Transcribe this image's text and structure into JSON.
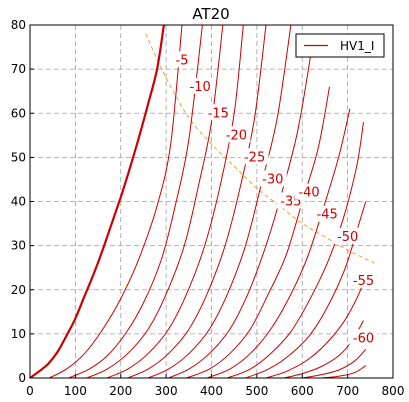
{
  "chart_data": {
    "type": "line",
    "title": "AT20",
    "xlabel": "",
    "ylabel": "",
    "xlim": [
      0,
      800
    ],
    "ylim": [
      0,
      80
    ],
    "x_ticks": [
      0,
      100,
      200,
      300,
      400,
      500,
      600,
      700,
      800
    ],
    "y_ticks": [
      0,
      10,
      20,
      30,
      40,
      50,
      60,
      70,
      80
    ],
    "grid": true,
    "legend": {
      "position": "top-right",
      "entries": [
        "HV1_I"
      ]
    },
    "colors": {
      "curve": "#cc0000",
      "load_line": "#f0a030",
      "grid": "#a0a0a0"
    },
    "series": [
      {
        "name": "HV1_I",
        "label": "0",
        "emphasis": true,
        "x": [
          0,
          20,
          40,
          60,
          80,
          100,
          120,
          140,
          160,
          180,
          200,
          220,
          240,
          260,
          280,
          295
        ],
        "y": [
          0,
          1.5,
          3.2,
          5.8,
          9.5,
          13.5,
          18.5,
          23.5,
          29,
          35,
          41,
          47.5,
          54.5,
          62,
          70,
          80
        ]
      },
      {
        "label": "-5",
        "x": [
          42,
          80,
          120,
          160,
          200,
          240,
          280,
          310,
          335
        ],
        "y": [
          0,
          2,
          5.5,
          11,
          18,
          27,
          39,
          53,
          80
        ]
      },
      {
        "label": "-10",
        "x": [
          85,
          130,
          170,
          210,
          250,
          290,
          320,
          350,
          380
        ],
        "y": [
          0,
          2,
          5,
          10,
          17,
          27,
          39,
          54,
          80
        ]
      },
      {
        "label": "-15",
        "x": [
          125,
          170,
          215,
          260,
          300,
          340,
          370,
          400,
          425
        ],
        "y": [
          0,
          2,
          5.5,
          11,
          19,
          30,
          43,
          58,
          80
        ]
      },
      {
        "label": "-20",
        "x": [
          170,
          215,
          260,
          305,
          345,
          385,
          420,
          450,
          470
        ],
        "y": [
          0,
          2,
          5.5,
          11,
          19,
          30,
          44,
          60,
          80
        ]
      },
      {
        "label": "-25",
        "x": [
          215,
          260,
          305,
          350,
          390,
          430,
          465,
          495,
          520
        ],
        "y": [
          0,
          2,
          5.5,
          11,
          19,
          30,
          44,
          59,
          80
        ]
      },
      {
        "label": "-30",
        "x": [
          260,
          305,
          350,
          395,
          435,
          475,
          510,
          545,
          575
        ],
        "y": [
          0,
          2,
          5.5,
          11,
          19,
          30,
          44,
          59,
          80
        ]
      },
      {
        "label": "-35",
        "x": [
          305,
          350,
          395,
          440,
          480,
          520,
          555,
          590,
          620
        ],
        "y": [
          0,
          2,
          5.5,
          11,
          19,
          30,
          42,
          56,
          74
        ]
      },
      {
        "label": "-40",
        "x": [
          345,
          395,
          440,
          485,
          525,
          565,
          600,
          635,
          660
        ],
        "y": [
          0,
          2,
          5.5,
          11,
          19,
          28,
          40,
          52,
          66
        ]
      },
      {
        "label": "-45",
        "x": [
          390,
          440,
          485,
          530,
          570,
          610,
          645,
          680,
          705
        ],
        "y": [
          0,
          2,
          5.5,
          11,
          18,
          27,
          38,
          50,
          61
        ]
      },
      {
        "label": "-50",
        "x": [
          435,
          485,
          530,
          575,
          615,
          655,
          690,
          720,
          735
        ],
        "y": [
          0,
          2,
          5.5,
          10.5,
          17.5,
          26,
          36,
          48,
          58
        ]
      },
      {
        "label": "-55",
        "x": [
          475,
          525,
          570,
          615,
          655,
          695,
          725,
          740
        ],
        "y": [
          0,
          2,
          5,
          9.5,
          16,
          25,
          35,
          40
        ]
      },
      {
        "label": "-60",
        "x": [
          520,
          565,
          610,
          650,
          690,
          720,
          740
        ],
        "y": [
          0,
          1.5,
          4,
          7.5,
          12.5,
          18,
          23
        ]
      },
      {
        "label": "",
        "x": [
          560,
          600,
          640,
          680,
          710,
          735
        ],
        "y": [
          0,
          1,
          2.5,
          5,
          8.5,
          13
        ]
      },
      {
        "label": "",
        "x": [
          600,
          640,
          680,
          715,
          740
        ],
        "y": [
          0,
          0.7,
          1.8,
          3.8,
          6.5
        ]
      },
      {
        "label": "",
        "x": [
          640,
          680,
          715,
          740
        ],
        "y": [
          0,
          0.4,
          1.2,
          2.8
        ]
      }
    ],
    "load_line": {
      "x": [
        255,
        300,
        350,
        400,
        450,
        500,
        550,
        600,
        650,
        700,
        760
      ],
      "y": [
        78,
        68,
        59,
        53,
        48,
        43,
        39,
        35,
        32,
        29,
        26
      ]
    },
    "curve_labels": [
      {
        "text": "-5",
        "x": 335,
        "y": 72
      },
      {
        "text": "-10",
        "x": 375,
        "y": 66
      },
      {
        "text": "-15",
        "x": 415,
        "y": 60
      },
      {
        "text": "-20",
        "x": 455,
        "y": 55
      },
      {
        "text": "-25",
        "x": 495,
        "y": 50
      },
      {
        "text": "-30",
        "x": 535,
        "y": 45
      },
      {
        "text": "-35",
        "x": 575,
        "y": 40
      },
      {
        "text": "-40",
        "x": 615,
        "y": 42
      },
      {
        "text": "-45",
        "x": 655,
        "y": 37
      },
      {
        "text": "-50",
        "x": 700,
        "y": 32
      },
      {
        "text": "-55",
        "x": 735,
        "y": 22
      },
      {
        "text": "-60",
        "x": 735,
        "y": 9
      }
    ]
  }
}
